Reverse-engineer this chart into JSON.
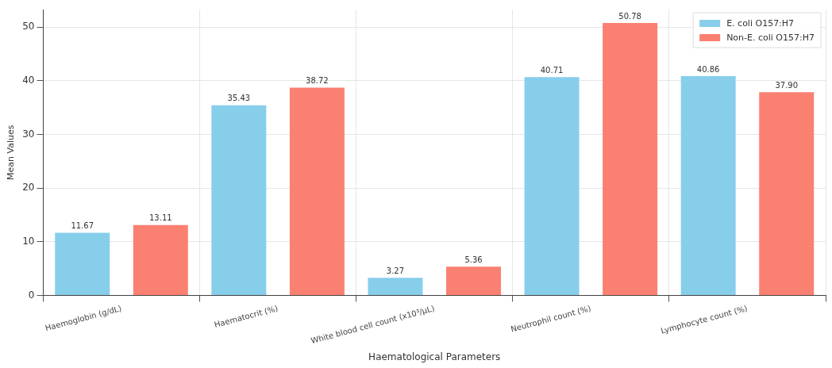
{
  "chart_data": {
    "type": "bar",
    "xlabel": "Haematological Parameters",
    "ylabel": "Mean Values",
    "categories": [
      "Haemoglobin (g/dL)",
      "Haematocrit (%)",
      "White blood cell count (x10³/µL)",
      "Neutrophil count (%)",
      "Lymphocyte count (%)"
    ],
    "series": [
      {
        "name": "E. coli O157:H7",
        "color": "#87ceeb",
        "values": [
          11.67,
          35.43,
          3.27,
          40.71,
          40.86
        ],
        "value_labels": [
          "11.67",
          "35.43",
          "3.27",
          "40.71",
          "40.86"
        ]
      },
      {
        "name": "Non-E. coli O157:H7",
        "color": "#fa8072",
        "values": [
          13.11,
          38.72,
          5.36,
          50.78,
          37.9
        ],
        "value_labels": [
          "13.11",
          "38.72",
          "5.36",
          "50.78",
          "37.90"
        ]
      }
    ],
    "ylim": [
      0,
      53.3
    ],
    "yticks": [
      0,
      10,
      20,
      30,
      40,
      50
    ],
    "grid": true,
    "legend": "top right"
  }
}
